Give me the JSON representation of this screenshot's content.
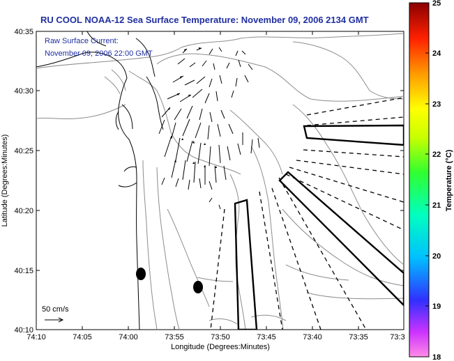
{
  "header": {
    "title": "RU COOL  NOAA-12  Sea Surface Temperature:  November 09, 2006 2134 GMT"
  },
  "legend": {
    "line1": "Raw Surface Current:",
    "line2": "November 09, 2006 22:00 GMT",
    "scale_label": "50 cm/s"
  },
  "axes": {
    "xlabel": "Longitude (Degrees:Minutes)",
    "ylabel": "Latitude (Degrees:Minutes)",
    "xticks": [
      "74:10",
      "74:05",
      "74:00",
      "73:55",
      "73:50",
      "73:45",
      "73:40",
      "73:35",
      "73:3"
    ],
    "yticks": [
      "40:35",
      "40:30",
      "40:25",
      "40:20",
      "40:15",
      "40:10"
    ]
  },
  "colorbar": {
    "label": "Temperature (°C)",
    "ticks": [
      "25",
      "24",
      "23",
      "22",
      "21",
      "20",
      "19",
      "18"
    ],
    "min": 18,
    "max": 25
  },
  "colors": {
    "title": "#1f2fa0",
    "contour": "#8c8c8c",
    "coast": "#000000"
  }
}
